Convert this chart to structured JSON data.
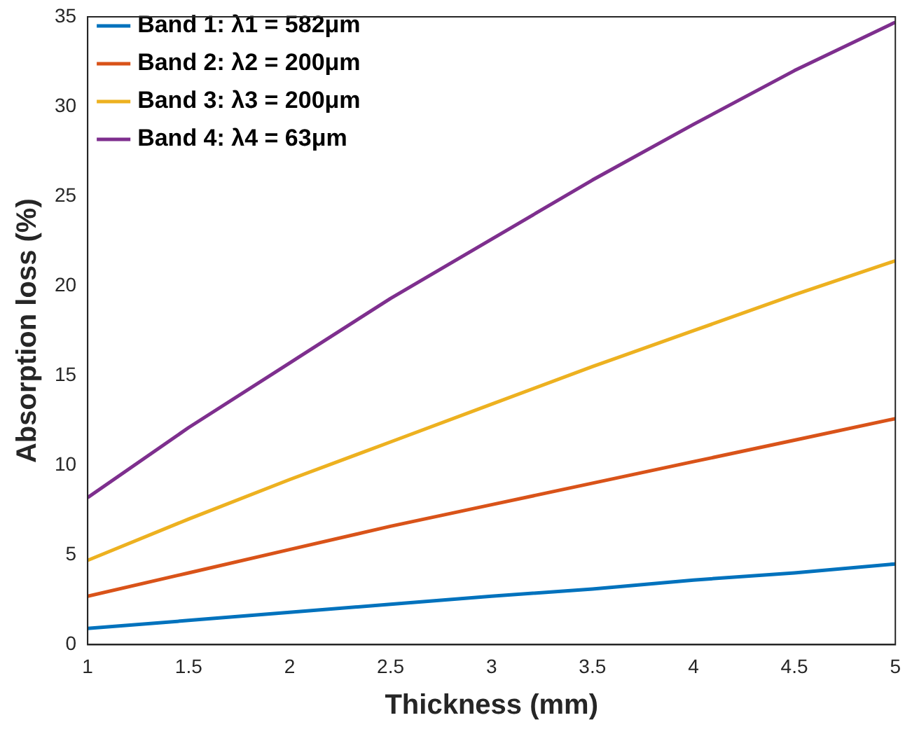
{
  "chart_data": {
    "type": "line",
    "xlabel": "Thickness (mm)",
    "ylabel": "Absorption loss (%)",
    "x": [
      1,
      1.5,
      2,
      2.5,
      3,
      3.5,
      4,
      4.5,
      5
    ],
    "series": [
      {
        "name": "Band 1: λ1 = 582μm",
        "color": "#0072bd",
        "values": [
          0.9,
          1.35,
          1.8,
          2.25,
          2.7,
          3.1,
          3.6,
          4.0,
          4.5
        ]
      },
      {
        "name": "Band 2: λ2 = 200μm",
        "color": "#d95319",
        "values": [
          2.7,
          4.0,
          5.3,
          6.6,
          7.8,
          9.0,
          10.2,
          11.4,
          12.6
        ]
      },
      {
        "name": "Band 3: λ3 = 200μm",
        "color": "#edb120",
        "values": [
          4.7,
          7.0,
          9.2,
          11.3,
          13.4,
          15.5,
          17.5,
          19.5,
          21.4
        ]
      },
      {
        "name": "Band 4: λ4 = 63μm",
        "color": "#7e2f8e",
        "values": [
          8.2,
          12.1,
          15.7,
          19.3,
          22.6,
          25.9,
          29.0,
          32.0,
          34.7
        ]
      }
    ],
    "xlim": [
      1,
      5
    ],
    "xticks": [
      1,
      1.5,
      2,
      2.5,
      3,
      3.5,
      4,
      4.5,
      5
    ],
    "ylim": [
      0,
      35
    ],
    "yticks": [
      0,
      5,
      10,
      15,
      20,
      25,
      30,
      35
    ],
    "grid": false,
    "legend": "top left",
    "marker": "none",
    "line_style": "solid"
  }
}
